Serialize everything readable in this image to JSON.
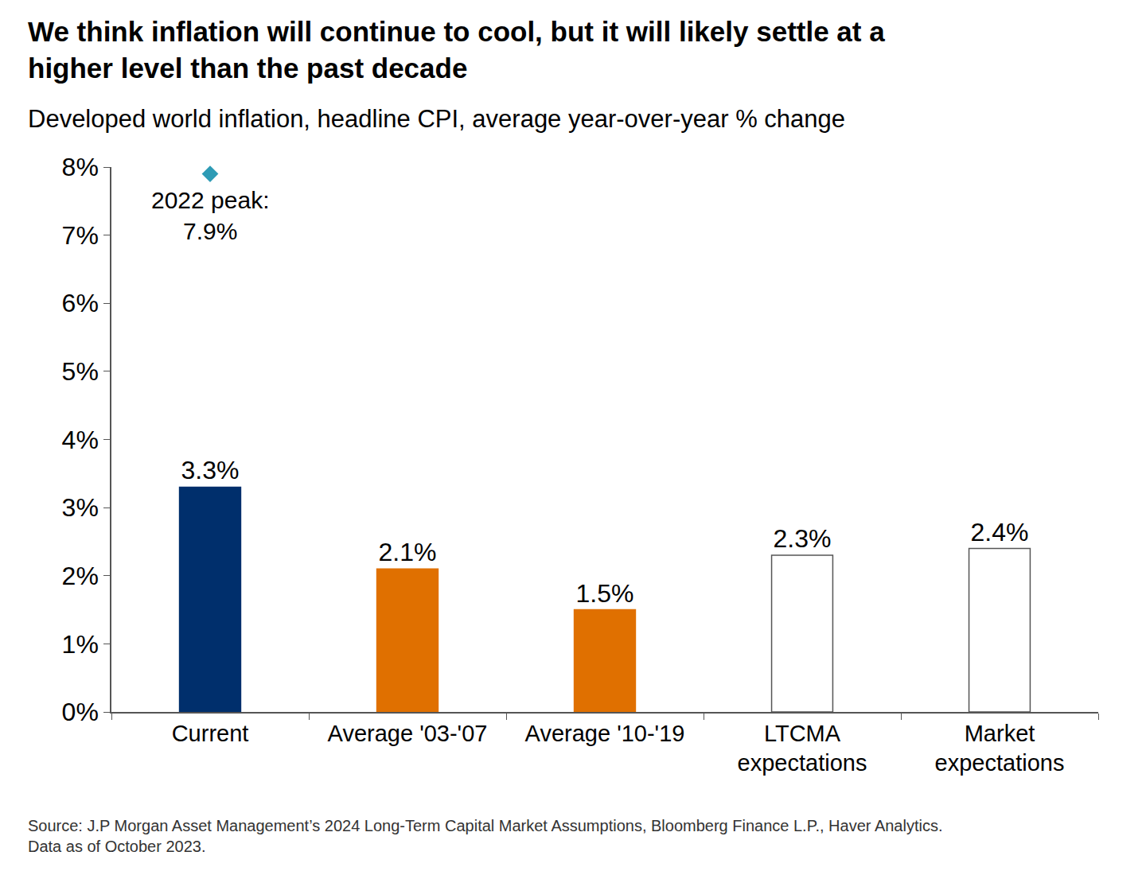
{
  "chart_data": {
    "type": "bar",
    "title": "We think inflation will continue to cool, but it will likely settle at a\nhigher level than the past decade",
    "subtitle": "Developed world inflation, headline CPI, average year-over-year % change",
    "categories": [
      "Current",
      "Average '03-'07",
      "Average '10-'19",
      "LTCMA\nexpectations",
      "Market\nexpectations"
    ],
    "values": [
      3.3,
      2.1,
      1.5,
      2.3,
      2.4
    ],
    "value_labels": [
      "3.3%",
      "2.1%",
      "1.5%",
      "2.3%",
      "2.4%"
    ],
    "colors": [
      "#002f6c",
      "#e07000",
      "#e07000",
      "#ffffff",
      "#ffffff"
    ],
    "data_labels": true,
    "ylim": [
      0,
      8
    ],
    "yticks": [
      {
        "value": 0,
        "label": "0%"
      },
      {
        "value": 1,
        "label": "1%"
      },
      {
        "value": 2,
        "label": "2%"
      },
      {
        "value": 3,
        "label": "3%"
      },
      {
        "value": 4,
        "label": "4%"
      },
      {
        "value": 5,
        "label": "5%"
      },
      {
        "value": 6,
        "label": "6%"
      },
      {
        "value": 7,
        "label": "7%"
      },
      {
        "value": 8,
        "label": "8%"
      }
    ],
    "grid": false,
    "peak": {
      "category": "Current",
      "value": 7.9,
      "label": "2022 peak:\n7.9%",
      "marker": "diamond",
      "color": "#2e9bb5"
    },
    "source": "Source: J.P Morgan Asset Management’s 2024 Long-Term Capital Market Assumptions, Bloomberg Finance L.P., Haver Analytics.\nData as of October 2023."
  }
}
